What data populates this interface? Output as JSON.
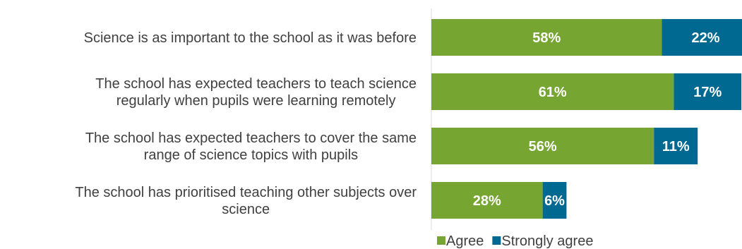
{
  "chart_data": {
    "type": "bar",
    "orientation": "horizontal",
    "stacked": true,
    "categories": [
      [
        "Science is as important to the school as it was before"
      ],
      [
        "The school has expected teachers to teach science",
        "regularly when pupils were learning remotely"
      ],
      [
        "The school has expected teachers to cover the same",
        "range of science topics with pupils"
      ],
      [
        "The school has prioritised teaching other subjects over",
        "science"
      ]
    ],
    "series": [
      {
        "name": "Agree",
        "values": [
          58,
          61,
          56,
          28
        ],
        "labels": [
          "58%",
          "61%",
          "56%",
          "28%"
        ],
        "color": "#76a532"
      },
      {
        "name": "Strongly agree",
        "values": [
          22,
          17,
          11,
          6
        ],
        "labels": [
          "22%",
          "17%",
          "11%",
          "6%"
        ],
        "color": "#006991"
      }
    ],
    "xlim": [
      0,
      100
    ],
    "grid": false,
    "legend": "bottom"
  }
}
